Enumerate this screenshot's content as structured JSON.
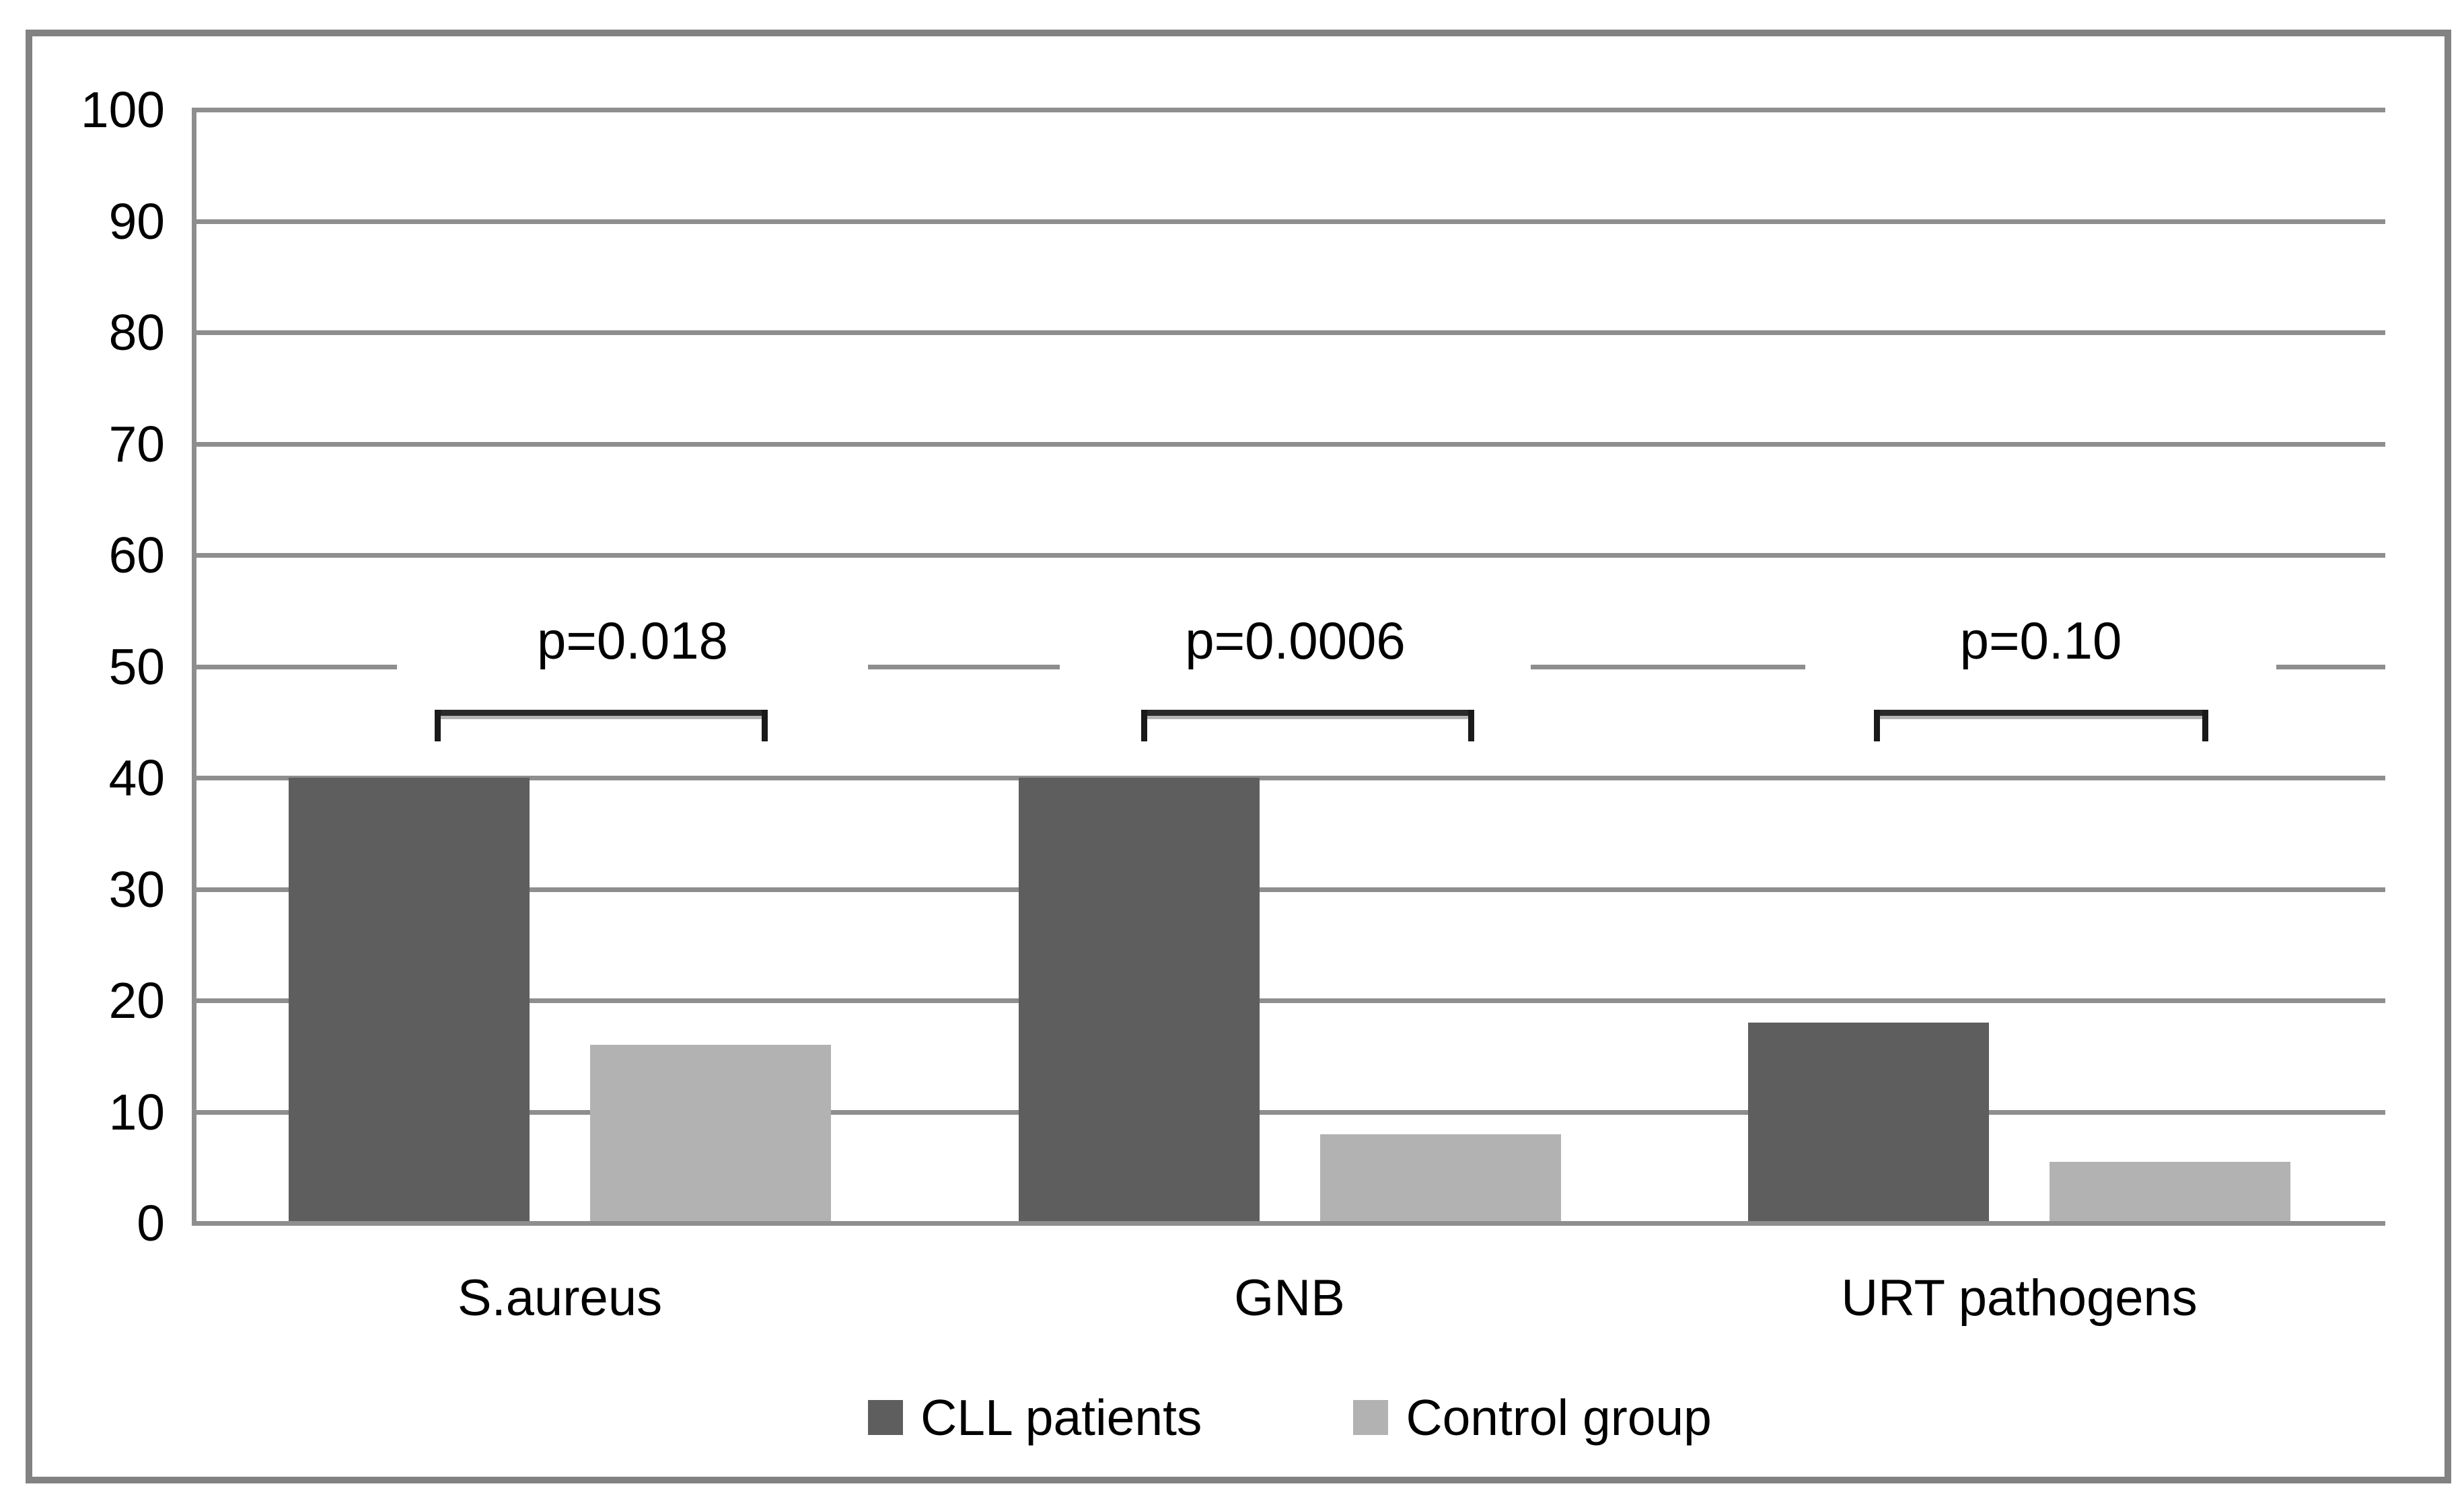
{
  "figure": {
    "background_color": "#ffffff",
    "border_color": "#828282"
  },
  "chart_data": {
    "type": "bar",
    "categories": [
      "S.aureus",
      "GNB",
      "URT pathogens"
    ],
    "series": [
      {
        "name": "CLL patients",
        "color": "#5e5e5e",
        "values": [
          40,
          40,
          18
        ]
      },
      {
        "name": "Control group",
        "color": "#b2b2b2",
        "values": [
          16,
          8,
          5.5
        ]
      }
    ],
    "ylim": [
      0,
      100
    ],
    "ytick_step": 10,
    "ytick_labels": [
      "0",
      "10",
      "20",
      "30",
      "40",
      "50",
      "60",
      "70",
      "80",
      "90",
      "100"
    ],
    "grid": "horizontal",
    "gridline_color": "#8e8e8e",
    "axis_line_color": "#8e8e8e",
    "legend_position": "bottom",
    "annotations": [
      {
        "group": "S.aureus",
        "label": "p=0.018",
        "has_bracket": true
      },
      {
        "group": "GNB",
        "label": "p=0.0006",
        "has_bracket": true
      },
      {
        "group": "URT pathogens",
        "label": "p=0.10",
        "has_bracket": true
      }
    ]
  }
}
